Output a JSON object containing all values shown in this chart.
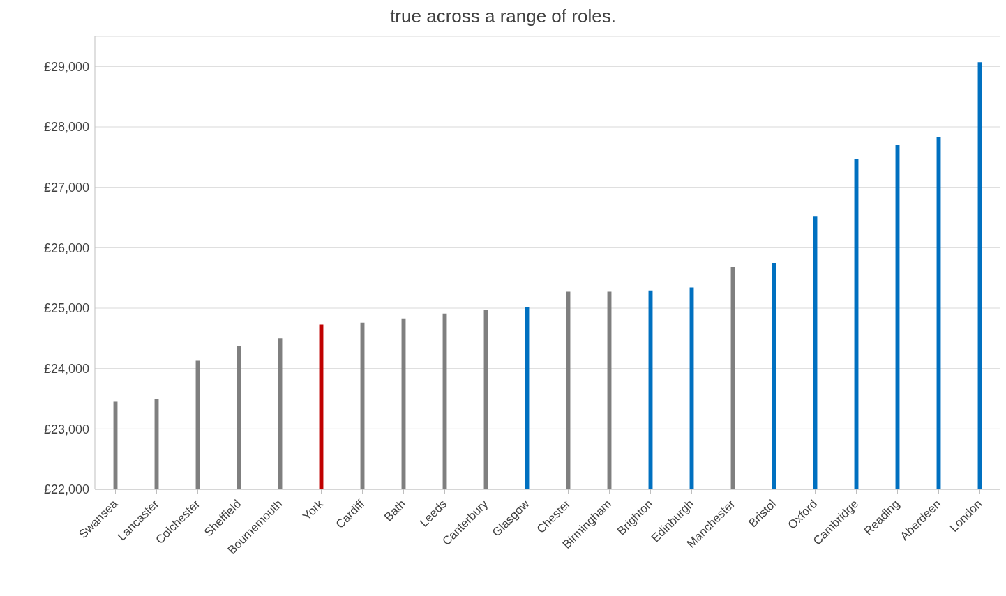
{
  "chart_data": {
    "type": "bar",
    "title": "true across a range of roles.",
    "categories": [
      "Swansea",
      "Lancaster",
      "Colchester",
      "Sheffield",
      "Bournemouth",
      "York",
      "Cardiff",
      "Bath",
      "Leeds",
      "Canterbury",
      "Glasgow",
      "Chester",
      "Birmingham",
      "Brighton",
      "Edinburgh",
      "Manchester",
      "Bristol",
      "Oxford",
      "Cambridge",
      "Reading",
      "Aberdeen",
      "London"
    ],
    "values": [
      23460,
      23500,
      24130,
      24370,
      24500,
      24730,
      24760,
      24830,
      24910,
      24970,
      25020,
      25270,
      25270,
      25290,
      25340,
      25680,
      25750,
      26520,
      27470,
      27700,
      27830,
      29070
    ],
    "colors": [
      "#7f7f7f",
      "#7f7f7f",
      "#7f7f7f",
      "#7f7f7f",
      "#7f7f7f",
      "#c00000",
      "#7f7f7f",
      "#7f7f7f",
      "#7f7f7f",
      "#7f7f7f",
      "#0070c0",
      "#7f7f7f",
      "#7f7f7f",
      "#0070c0",
      "#0070c0",
      "#7f7f7f",
      "#0070c0",
      "#0070c0",
      "#0070c0",
      "#0070c0",
      "#0070c0",
      "#0070c0"
    ],
    "ylim": [
      22000,
      29500
    ],
    "yticks": [
      {
        "value": 22000,
        "label": "£22,000"
      },
      {
        "value": 23000,
        "label": "£23,000"
      },
      {
        "value": 24000,
        "label": "£24,000"
      },
      {
        "value": 25000,
        "label": "£25,000"
      },
      {
        "value": 26000,
        "label": "£26,000"
      },
      {
        "value": 27000,
        "label": "£27,000"
      },
      {
        "value": 28000,
        "label": "£28,000"
      },
      {
        "value": 29000,
        "label": "£29,000"
      }
    ],
    "grid": "y",
    "legend": false
  }
}
